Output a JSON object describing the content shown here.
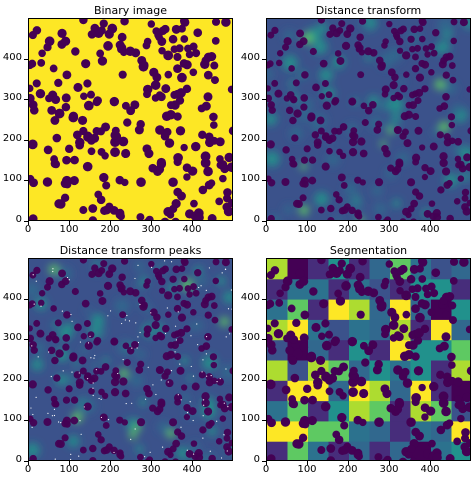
{
  "chart_data": [
    {
      "type": "heatmap",
      "title": "Binary image",
      "xlabel": "",
      "ylabel": "",
      "xlim": [
        0,
        500
      ],
      "ylim": [
        0,
        500
      ],
      "xticks": [
        0,
        100,
        200,
        300,
        400
      ],
      "yticks": [
        0,
        100,
        200,
        300,
        400
      ],
      "colormap": "viridis",
      "values_description": "binary mask: overlapping circles (dark purple, 0) on yellow background (1)",
      "grid": false
    },
    {
      "type": "heatmap",
      "title": "Distance transform",
      "xlabel": "",
      "ylabel": "",
      "xlim": [
        0,
        500
      ],
      "ylim": [
        0,
        500
      ],
      "xticks": [
        0,
        100,
        200,
        300,
        400
      ],
      "yticks": [
        0,
        100,
        200,
        300,
        400
      ],
      "colormap": "viridis",
      "grid": false
    },
    {
      "type": "heatmap",
      "title": "Distance transform peaks",
      "xlabel": "",
      "ylabel": "",
      "xlim": [
        0,
        500
      ],
      "ylim": [
        0,
        500
      ],
      "xticks": [
        0,
        100,
        200,
        300,
        400
      ],
      "yticks": [
        0,
        100,
        200,
        300,
        400
      ],
      "colormap": "viridis",
      "grid": false
    },
    {
      "type": "heatmap",
      "title": "Segmentation",
      "xlabel": "",
      "ylabel": "",
      "xlim": [
        0,
        500
      ],
      "ylim": [
        0,
        500
      ],
      "xticks": [
        0,
        100,
        200,
        300,
        400
      ],
      "yticks": [
        0,
        100,
        200,
        300,
        400
      ],
      "colormap": "viridis",
      "grid": false
    }
  ],
  "colors": {
    "dark": "#440154",
    "yellow": "#fde725",
    "blue": "#3b528b",
    "teal": "#21918c",
    "green": "#5ec962",
    "lime": "#addc30",
    "navy": "#31688e",
    "white_peak": "#ffffff"
  }
}
